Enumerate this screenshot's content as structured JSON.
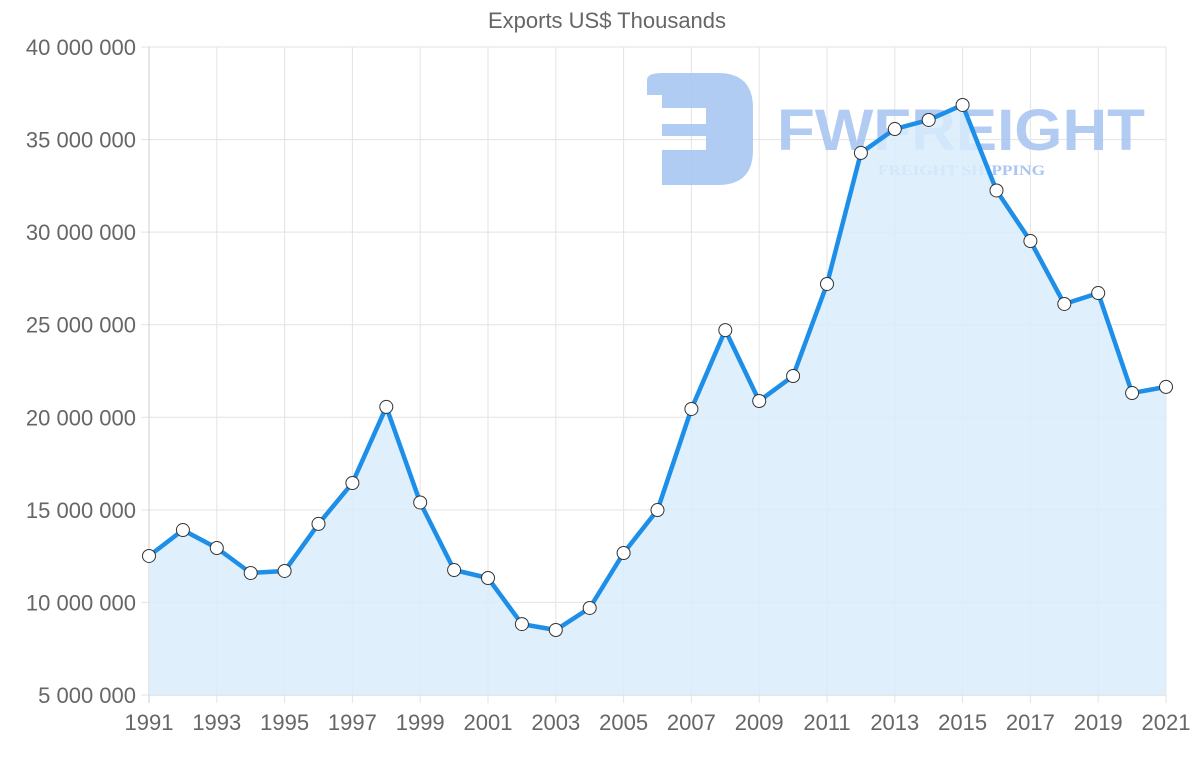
{
  "chart_data": {
    "type": "area",
    "title": "Exports US$ Thousands",
    "xlabel": "",
    "ylabel": "",
    "x": [
      1991,
      1992,
      1993,
      1994,
      1995,
      1996,
      1997,
      1998,
      1999,
      2000,
      2001,
      2002,
      2003,
      2004,
      2005,
      2006,
      2007,
      2008,
      2009,
      2010,
      2011,
      2012,
      2013,
      2014,
      2015,
      2016,
      2017,
      2018,
      2019,
      2020,
      2021
    ],
    "series": [
      {
        "name": "Exports US$ Thousands",
        "values": [
          12510000,
          13910000,
          12940000,
          11590000,
          11700000,
          14240000,
          16450000,
          20560000,
          15400000,
          11750000,
          11320000,
          8830000,
          8510000,
          9700000,
          12670000,
          14990000,
          20450000,
          24710000,
          20880000,
          22230000,
          27200000,
          34280000,
          35570000,
          36060000,
          36870000,
          32250000,
          29520000,
          26120000,
          26710000,
          21310000,
          21640000
        ]
      }
    ],
    "ylim": [
      5000000,
      40000000
    ],
    "y_ticks": [
      5000000,
      10000000,
      15000000,
      20000000,
      25000000,
      30000000,
      35000000,
      40000000
    ],
    "y_tick_labels": [
      "5 000 000",
      "10 000 000",
      "15 000 000",
      "20 000 000",
      "25 000 000",
      "30 000 000",
      "35 000 000",
      "40 000 000"
    ],
    "x_tick_labels": [
      "1991",
      "1993",
      "1995",
      "1997",
      "1999",
      "2001",
      "2003",
      "2005",
      "2007",
      "2009",
      "2011",
      "2013",
      "2015",
      "2017",
      "2019",
      "2021"
    ],
    "grid": true,
    "legend": "none",
    "colors": {
      "line": "#1e8fe8",
      "fill": "#d9ecfc",
      "point_fill": "#ffffff",
      "point_stroke": "#333333",
      "grid": "#e3e3e3",
      "axis_text": "#666666",
      "watermark": "#a9c6f2"
    }
  },
  "watermark": {
    "brand": "FWFREIGHT",
    "tagline": "FREIGHT SHIPPING",
    "logo_icon": "fw-logo-icon"
  }
}
